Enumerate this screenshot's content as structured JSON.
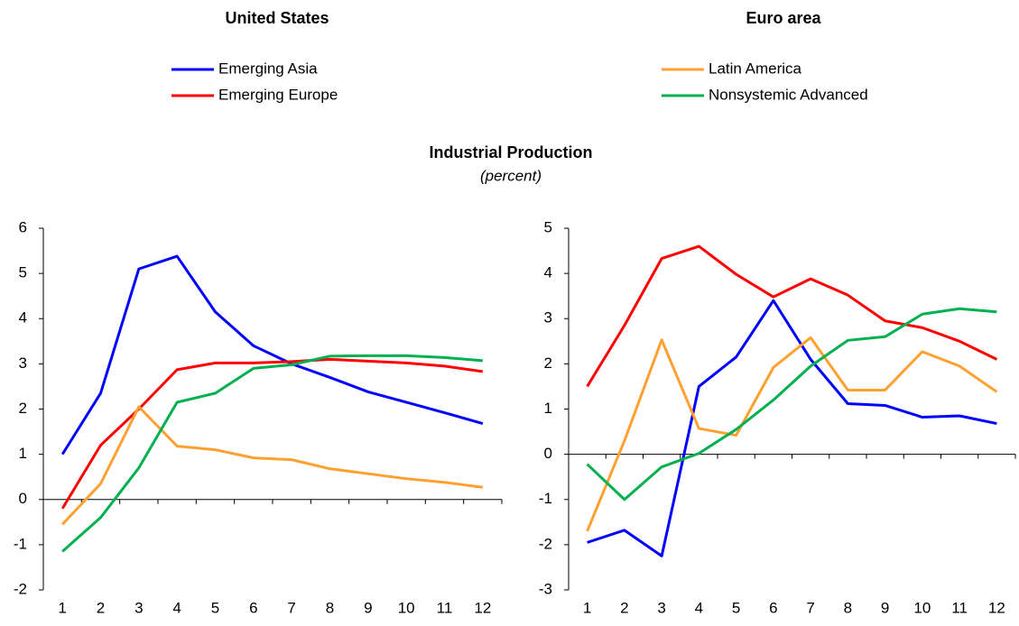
{
  "title": "Industrial Production",
  "subtitle": "(percent)",
  "chart_data": [
    {
      "type": "line",
      "title": "United States",
      "categories": [
        "1",
        "2",
        "3",
        "4",
        "5",
        "6",
        "7",
        "8",
        "9",
        "10",
        "11",
        "12"
      ],
      "ylim": [
        -2,
        6
      ],
      "yticks": [
        -2,
        -1,
        0,
        1,
        2,
        3,
        4,
        5,
        6
      ],
      "series": [
        {
          "name": "Emerging Asia",
          "color": "#0000ff",
          "values": [
            1.0,
            2.35,
            5.1,
            5.38,
            4.15,
            3.4,
            3.0,
            2.7,
            2.38,
            2.15,
            1.92,
            1.68
          ]
        },
        {
          "name": "Emerging Europe",
          "color": "#ff0000",
          "values": [
            -0.2,
            1.2,
            2.0,
            2.87,
            3.02,
            3.02,
            3.05,
            3.1,
            3.06,
            3.02,
            2.95,
            2.83
          ]
        },
        {
          "name": "Latin America",
          "color": "#ffa030",
          "values": [
            -0.55,
            0.35,
            2.05,
            1.18,
            1.1,
            0.92,
            0.88,
            0.68,
            0.57,
            0.46,
            0.38,
            0.27
          ]
        },
        {
          "name": "Nonsystemic Advanced",
          "color": "#00b050",
          "values": [
            -1.15,
            -0.4,
            0.7,
            2.15,
            2.35,
            2.9,
            2.98,
            3.17,
            3.18,
            3.18,
            3.14,
            3.07
          ]
        }
      ]
    },
    {
      "type": "line",
      "title": "Euro area",
      "categories": [
        "1",
        "2",
        "3",
        "4",
        "5",
        "6",
        "7",
        "8",
        "9",
        "10",
        "11",
        "12"
      ],
      "ylim": [
        -3,
        5
      ],
      "yticks": [
        -3,
        -2,
        -1,
        0,
        1,
        2,
        3,
        4,
        5
      ],
      "series": [
        {
          "name": "Emerging Asia",
          "color": "#0000ff",
          "values": [
            -1.95,
            -1.68,
            -2.25,
            1.5,
            2.15,
            3.4,
            2.1,
            1.12,
            1.08,
            0.82,
            0.85,
            0.68
          ]
        },
        {
          "name": "Emerging Europe",
          "color": "#ff0000",
          "values": [
            1.5,
            2.85,
            4.33,
            4.6,
            3.98,
            3.48,
            3.88,
            3.52,
            2.95,
            2.8,
            2.5,
            2.1
          ]
        },
        {
          "name": "Latin America",
          "color": "#ffa030",
          "values": [
            -1.7,
            0.3,
            2.53,
            0.57,
            0.42,
            1.92,
            2.58,
            1.42,
            1.42,
            2.27,
            1.95,
            1.38
          ]
        },
        {
          "name": "Nonsystemic Advanced",
          "color": "#00b050",
          "values": [
            -0.22,
            -1.0,
            -0.28,
            0.02,
            0.55,
            1.2,
            1.95,
            2.52,
            2.6,
            3.1,
            3.22,
            3.15
          ]
        }
      ]
    }
  ]
}
